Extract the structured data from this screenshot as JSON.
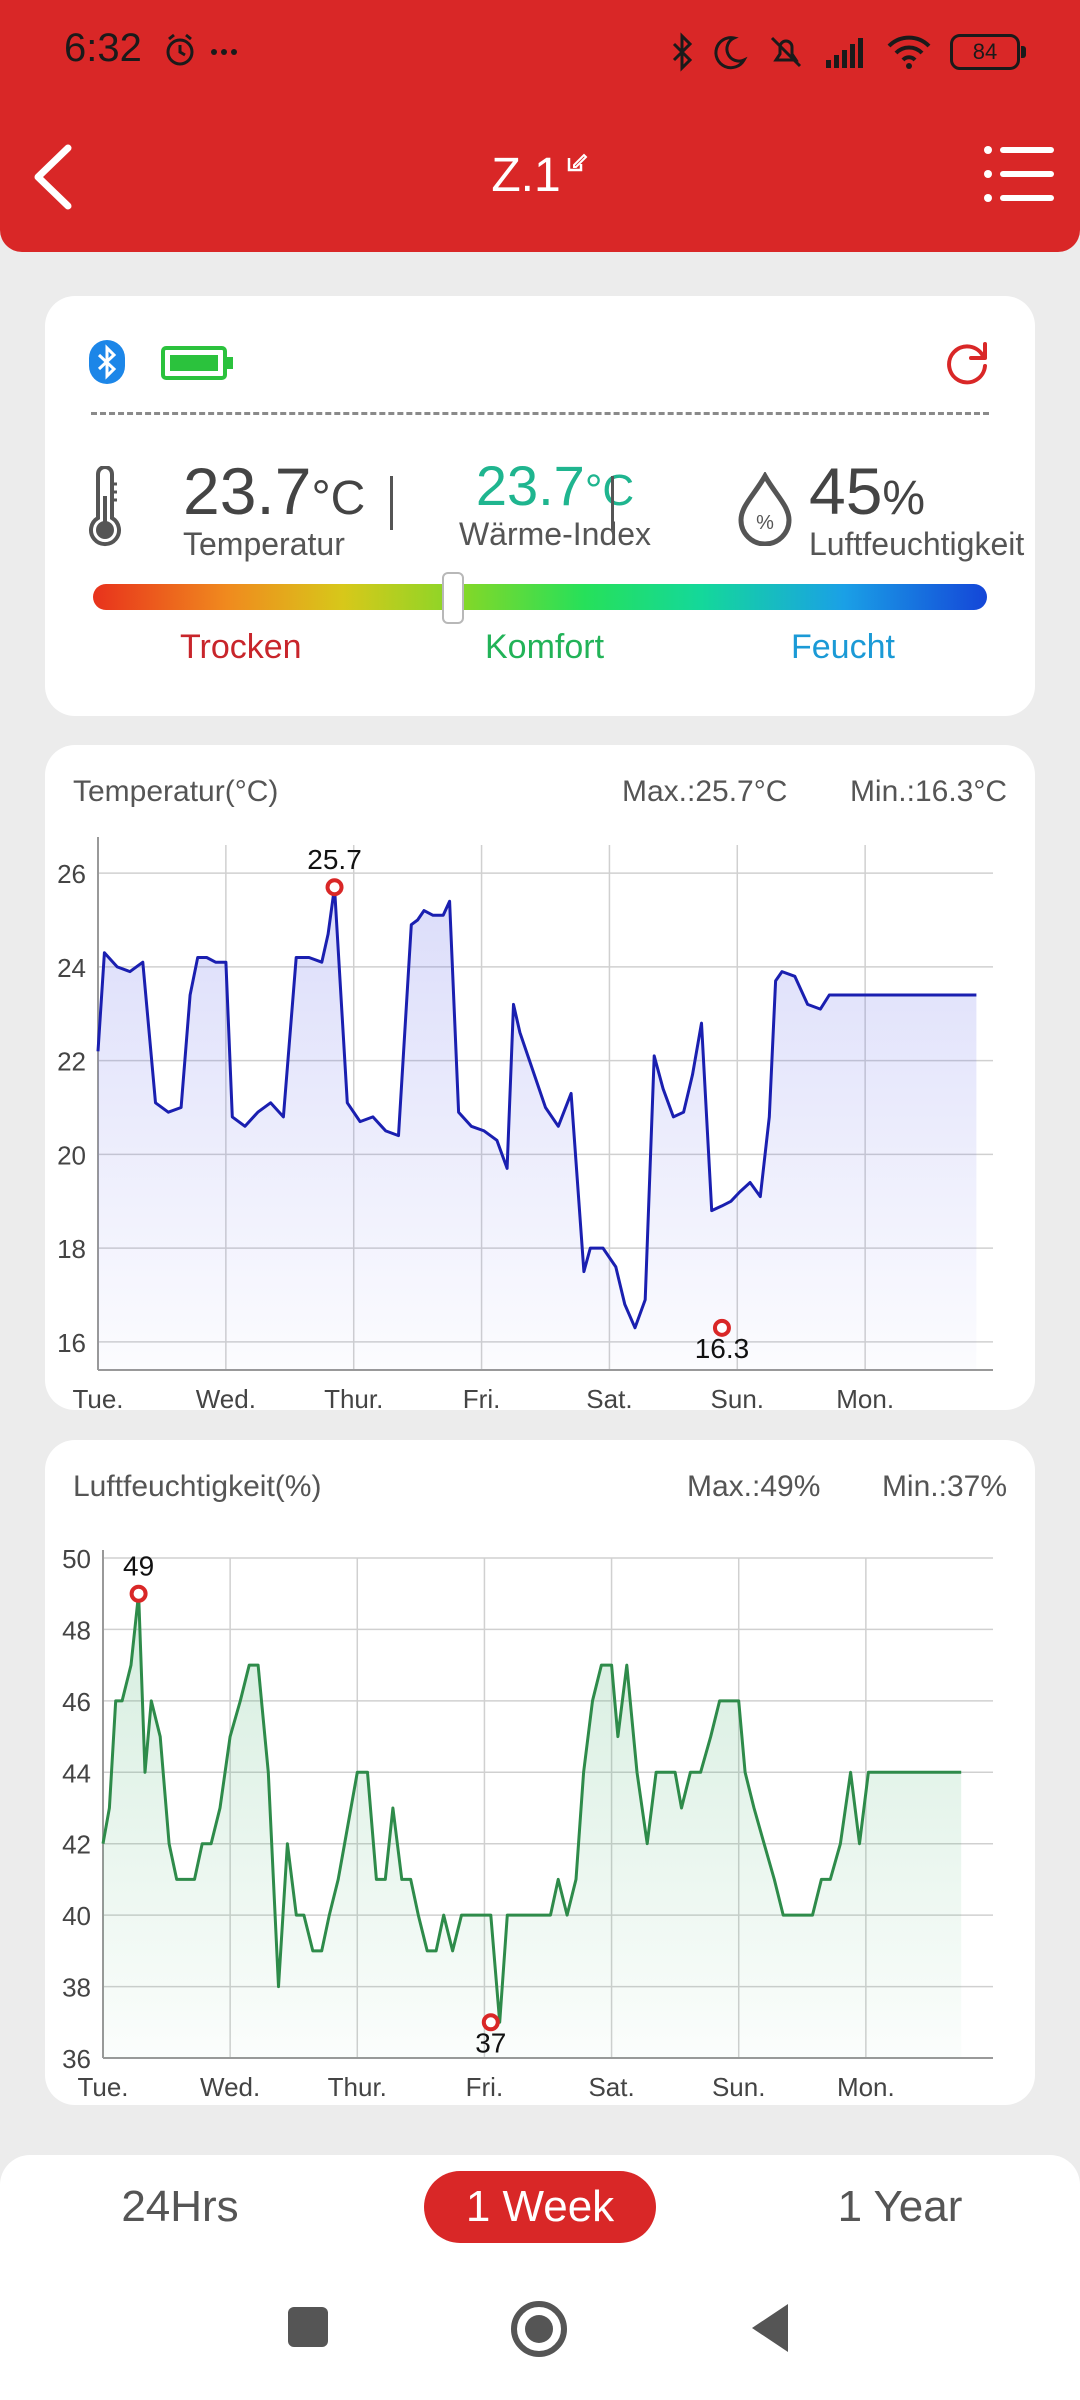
{
  "status_bar": {
    "time": "6:32",
    "battery": "84"
  },
  "header": {
    "title": "Z.1"
  },
  "summary": {
    "temperature": {
      "value": "23.7",
      "unit": "°C",
      "label": "Temperatur"
    },
    "heat_index": {
      "value": "23.7",
      "unit": "°C",
      "label": "Wärme-Index"
    },
    "humidity": {
      "value": "45",
      "unit": "%",
      "label": "Luftfeuchtigkeit",
      "icon_text": "%"
    },
    "comfort_position": 0.4,
    "levels": {
      "dry": "Trocken",
      "comfort": "Komfort",
      "wet": "Feucht"
    }
  },
  "temp_chart": {
    "title": "Temperatur(°C)",
    "max_text": "Max.:25.7°C",
    "min_text": "Min.:16.3°C"
  },
  "hum_chart": {
    "title": "Luftfeuchtigkeit(%)",
    "max_text": "Max.:49%",
    "min_text": "Min.:37%"
  },
  "range_tabs": {
    "day": "24Hrs",
    "week": "1 Week",
    "year": "1 Year",
    "selected": "1 Week"
  },
  "colors": {
    "brand": "#d92727",
    "temp_line": "#1a1fb0",
    "hum_line": "#2e8b4a",
    "heat_index": "#1fb58f",
    "marker": "#d92727"
  },
  "chart_data": [
    {
      "type": "area",
      "title": "Temperatur(°C)",
      "days": [
        "Tue.",
        "Wed.",
        "Thur.",
        "Fri.",
        "Sat.",
        "Sun.",
        "Mon."
      ],
      "yticks": [
        16,
        18,
        20,
        22,
        24,
        26
      ],
      "ylim": [
        15.4,
        26.6
      ],
      "x_label_note": "x in days from Tue. 00:00",
      "series": [
        {
          "x": [
            0.0,
            0.05,
            0.15,
            0.25,
            0.35,
            0.45,
            0.55,
            0.65,
            0.72,
            0.78,
            0.85,
            0.92,
            1.0,
            1.05,
            1.15,
            1.25,
            1.35,
            1.45,
            1.55,
            1.65,
            1.75,
            1.8,
            1.85,
            1.95,
            2.05,
            2.15,
            2.25,
            2.35,
            2.45,
            2.5,
            2.55,
            2.62,
            2.7,
            2.75,
            2.82,
            2.92,
            3.02,
            3.12,
            3.2,
            3.25,
            3.3,
            3.4,
            3.5,
            3.6,
            3.7,
            3.8,
            3.85,
            3.95,
            4.05,
            4.12,
            4.2,
            4.28,
            4.35,
            4.42,
            4.5,
            4.58,
            4.65,
            4.72,
            4.8,
            4.88,
            4.95,
            5.02,
            5.1,
            5.18,
            5.25,
            5.3,
            5.35,
            5.45,
            5.55,
            5.65,
            5.72,
            5.78,
            5.85,
            5.92,
            5.96,
            6.05,
            6.12,
            6.2,
            6.28,
            6.38,
            6.45,
            6.55,
            6.6,
            6.68,
            6.75,
            6.82,
            6.87
          ],
          "y": [
            22.2,
            24.3,
            24.0,
            23.9,
            24.1,
            21.1,
            20.9,
            21.0,
            23.4,
            24.2,
            24.2,
            24.1,
            24.1,
            20.8,
            20.6,
            20.9,
            21.1,
            20.8,
            24.2,
            24.2,
            24.1,
            24.7,
            25.7,
            21.1,
            20.7,
            20.8,
            20.5,
            20.4,
            24.9,
            25.0,
            25.2,
            25.1,
            25.1,
            25.4,
            20.9,
            20.6,
            20.5,
            20.3,
            19.7,
            23.2,
            22.6,
            21.8,
            21.0,
            20.6,
            21.3,
            17.5,
            18.0,
            18.0,
            17.6,
            16.8,
            16.3,
            16.9,
            22.1,
            21.4,
            20.8,
            20.9,
            21.7,
            22.8,
            18.8,
            18.9,
            19.0,
            19.2,
            19.4,
            19.1,
            20.8,
            23.7,
            23.9,
            23.8,
            23.2,
            23.1,
            23.4,
            23.4,
            23.4,
            23.4,
            23.4,
            23.4,
            23.4,
            23.4,
            23.4,
            23.4,
            23.4,
            23.4,
            23.4,
            23.4,
            23.4,
            23.4,
            23.4
          ]
        }
      ],
      "max_point": {
        "x": 1.85,
        "y": 25.7,
        "label": "25.7"
      },
      "min_point": {
        "x": 4.88,
        "y": 16.3,
        "label": "16.3"
      }
    },
    {
      "type": "area",
      "title": "Luftfeuchtigkeit(%)",
      "days": [
        "Tue.",
        "Wed.",
        "Thur.",
        "Fri.",
        "Sat.",
        "Sun.",
        "Mon."
      ],
      "yticks": [
        36,
        38,
        40,
        42,
        44,
        46,
        48,
        50
      ],
      "ylim": [
        36,
        50
      ],
      "series": [
        {
          "x": [
            0.0,
            0.05,
            0.1,
            0.15,
            0.22,
            0.28,
            0.33,
            0.38,
            0.45,
            0.52,
            0.58,
            0.65,
            0.72,
            0.78,
            0.85,
            0.92,
            1.0,
            1.08,
            1.15,
            1.22,
            1.3,
            1.38,
            1.45,
            1.52,
            1.58,
            1.65,
            1.72,
            1.78,
            1.85,
            1.9,
            2.0,
            2.08,
            2.15,
            2.22,
            2.28,
            2.35,
            2.42,
            2.48,
            2.55,
            2.62,
            2.68,
            2.75,
            2.82,
            2.9,
            2.98,
            3.05,
            3.12,
            3.18,
            3.25,
            3.32,
            3.38,
            3.45,
            3.52,
            3.58,
            3.65,
            3.72,
            3.78,
            3.85,
            3.92,
            4.0,
            4.05,
            4.12,
            4.2,
            4.28,
            4.35,
            4.42,
            4.5,
            4.55,
            4.62,
            4.7,
            4.78,
            4.85,
            4.92,
            5.0,
            5.05,
            5.12,
            5.2,
            5.28,
            5.35,
            5.42,
            5.5,
            5.58,
            5.65,
            5.72,
            5.8,
            5.88,
            5.95,
            6.02,
            6.1,
            6.18,
            6.25,
            6.32,
            6.38,
            6.45,
            6.52,
            6.6,
            6.68,
            6.75
          ],
          "y": [
            42,
            43,
            46,
            46,
            47,
            49,
            44,
            46,
            45,
            42,
            41,
            41,
            41,
            42,
            42,
            43,
            45,
            46,
            47,
            47,
            44,
            38,
            42,
            40,
            40,
            39,
            39,
            40,
            41,
            42,
            44,
            44,
            41,
            41,
            43,
            41,
            41,
            40,
            39,
            39,
            40,
            39,
            40,
            40,
            40,
            40,
            37,
            40,
            40,
            40,
            40,
            40,
            40,
            41,
            40,
            41,
            44,
            46,
            47,
            47,
            45,
            47,
            44,
            42,
            44,
            44,
            44,
            43,
            44,
            44,
            45,
            46,
            46,
            46,
            44,
            43,
            42,
            41,
            40,
            40,
            40,
            40,
            41,
            41,
            42,
            44,
            42,
            44,
            44,
            44,
            44,
            44,
            44,
            44,
            44,
            44,
            44,
            44
          ],
          "note": "values after x=6.25 are trailing tail"
        }
      ],
      "max_point": {
        "x": 0.28,
        "y": 49,
        "label": "49"
      },
      "min_point": {
        "x": 3.05,
        "y": 37,
        "label": "37"
      }
    }
  ]
}
